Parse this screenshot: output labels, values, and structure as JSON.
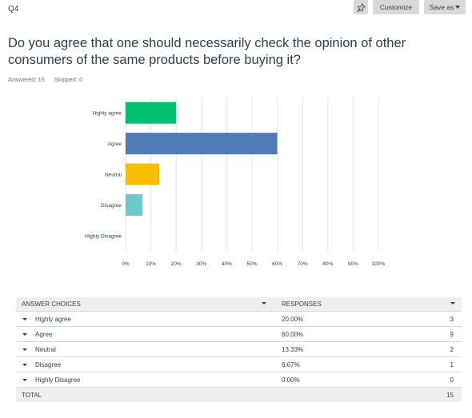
{
  "question_number": "Q4",
  "toolbar": {
    "customize_label": "Customize",
    "save_label": "Save as",
    "pin_icon": "pin-icon"
  },
  "question_text": "Do you agree that one should necessarily check the opinion of other consumers of the same products before buying it?",
  "answered": "Answered: 15",
  "skipped": "Skipped: 0",
  "chart_data": {
    "type": "bar",
    "orientation": "horizontal",
    "categories": [
      "Highly agree",
      "Agree",
      "Neutral",
      "Disagree",
      "Highly Disagree"
    ],
    "values": [
      20.0,
      60.0,
      13.33,
      6.67,
      0.0
    ],
    "colors": [
      "#00bf6f",
      "#507cb6",
      "#f9be00",
      "#6bc8cd",
      "#ff8b4f"
    ],
    "xlim": [
      0,
      100
    ],
    "xticks": [
      "0%",
      "10%",
      "20%",
      "30%",
      "40%",
      "50%",
      "60%",
      "70%",
      "80%",
      "90%",
      "100%"
    ],
    "grid": true
  },
  "table": {
    "headers": {
      "choices": "ANSWER CHOICES",
      "responses": "RESPONSES"
    },
    "rows": [
      {
        "choice": "Highly agree",
        "pct": "20.00%",
        "count": "3"
      },
      {
        "choice": "Agree",
        "pct": "60.00%",
        "count": "9"
      },
      {
        "choice": "Neutral",
        "pct": "13.33%",
        "count": "2"
      },
      {
        "choice": "Disagree",
        "pct": "6.67%",
        "count": "1"
      },
      {
        "choice": "Highly Disagree",
        "pct": "0.00%",
        "count": "0"
      }
    ],
    "total_label": "TOTAL",
    "total_value": "15"
  }
}
